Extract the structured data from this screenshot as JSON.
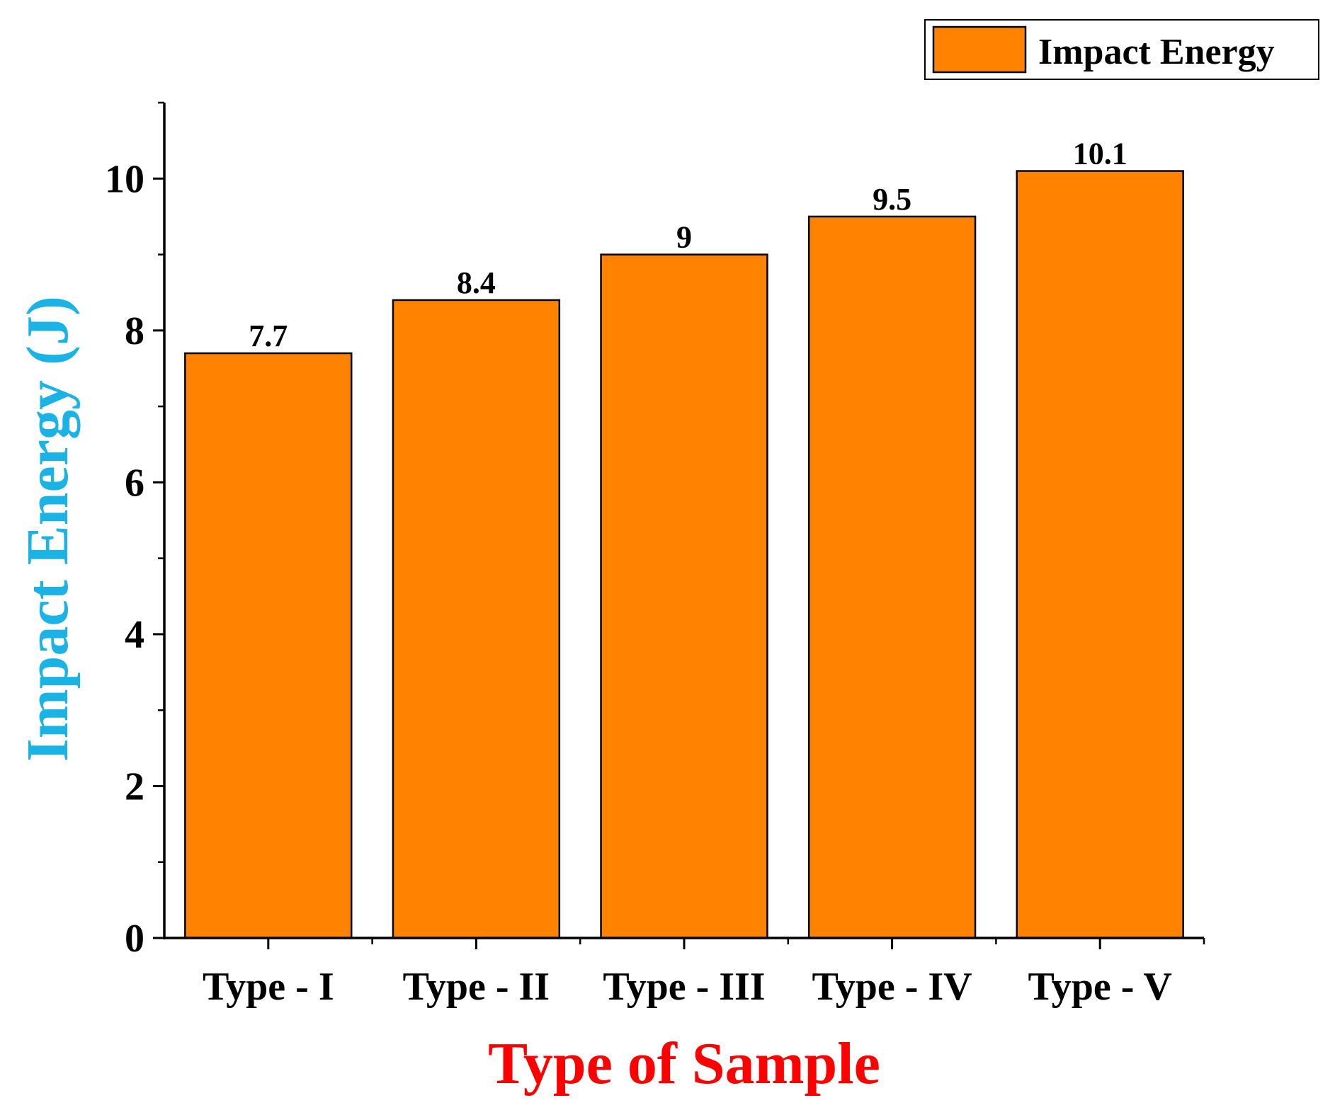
{
  "chart_data": {
    "type": "bar",
    "categories": [
      "Type - I",
      "Type - II",
      "Type - III",
      "Type - IV",
      "Type - V"
    ],
    "series": [
      {
        "name": "Impact Energy",
        "values": [
          7.7,
          8.4,
          9,
          9.5,
          10.1
        ]
      }
    ],
    "data_labels": [
      "7.7",
      "8.4",
      "9",
      "9.5",
      "10.1"
    ],
    "xlabel": "Type of Sample",
    "ylabel": "Impact Energy (J)",
    "ylim": [
      0,
      11
    ],
    "yticks": [
      0,
      2,
      4,
      6,
      8,
      10
    ],
    "grid": false,
    "legend_position": "top-right",
    "colors": {
      "bar_fill": "#FF8300",
      "bar_stroke": "#000000",
      "xlabel": "#FF0000",
      "ylabel": "#1BB3E6"
    }
  }
}
